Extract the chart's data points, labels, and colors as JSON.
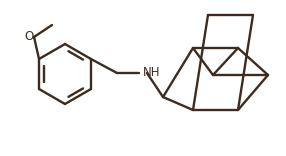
{
  "background_color": "#ffffff",
  "line_color": "#3d2b1f",
  "line_width": 1.7,
  "font_size": 8.5,
  "nh_label": "NH",
  "o_label": "O"
}
